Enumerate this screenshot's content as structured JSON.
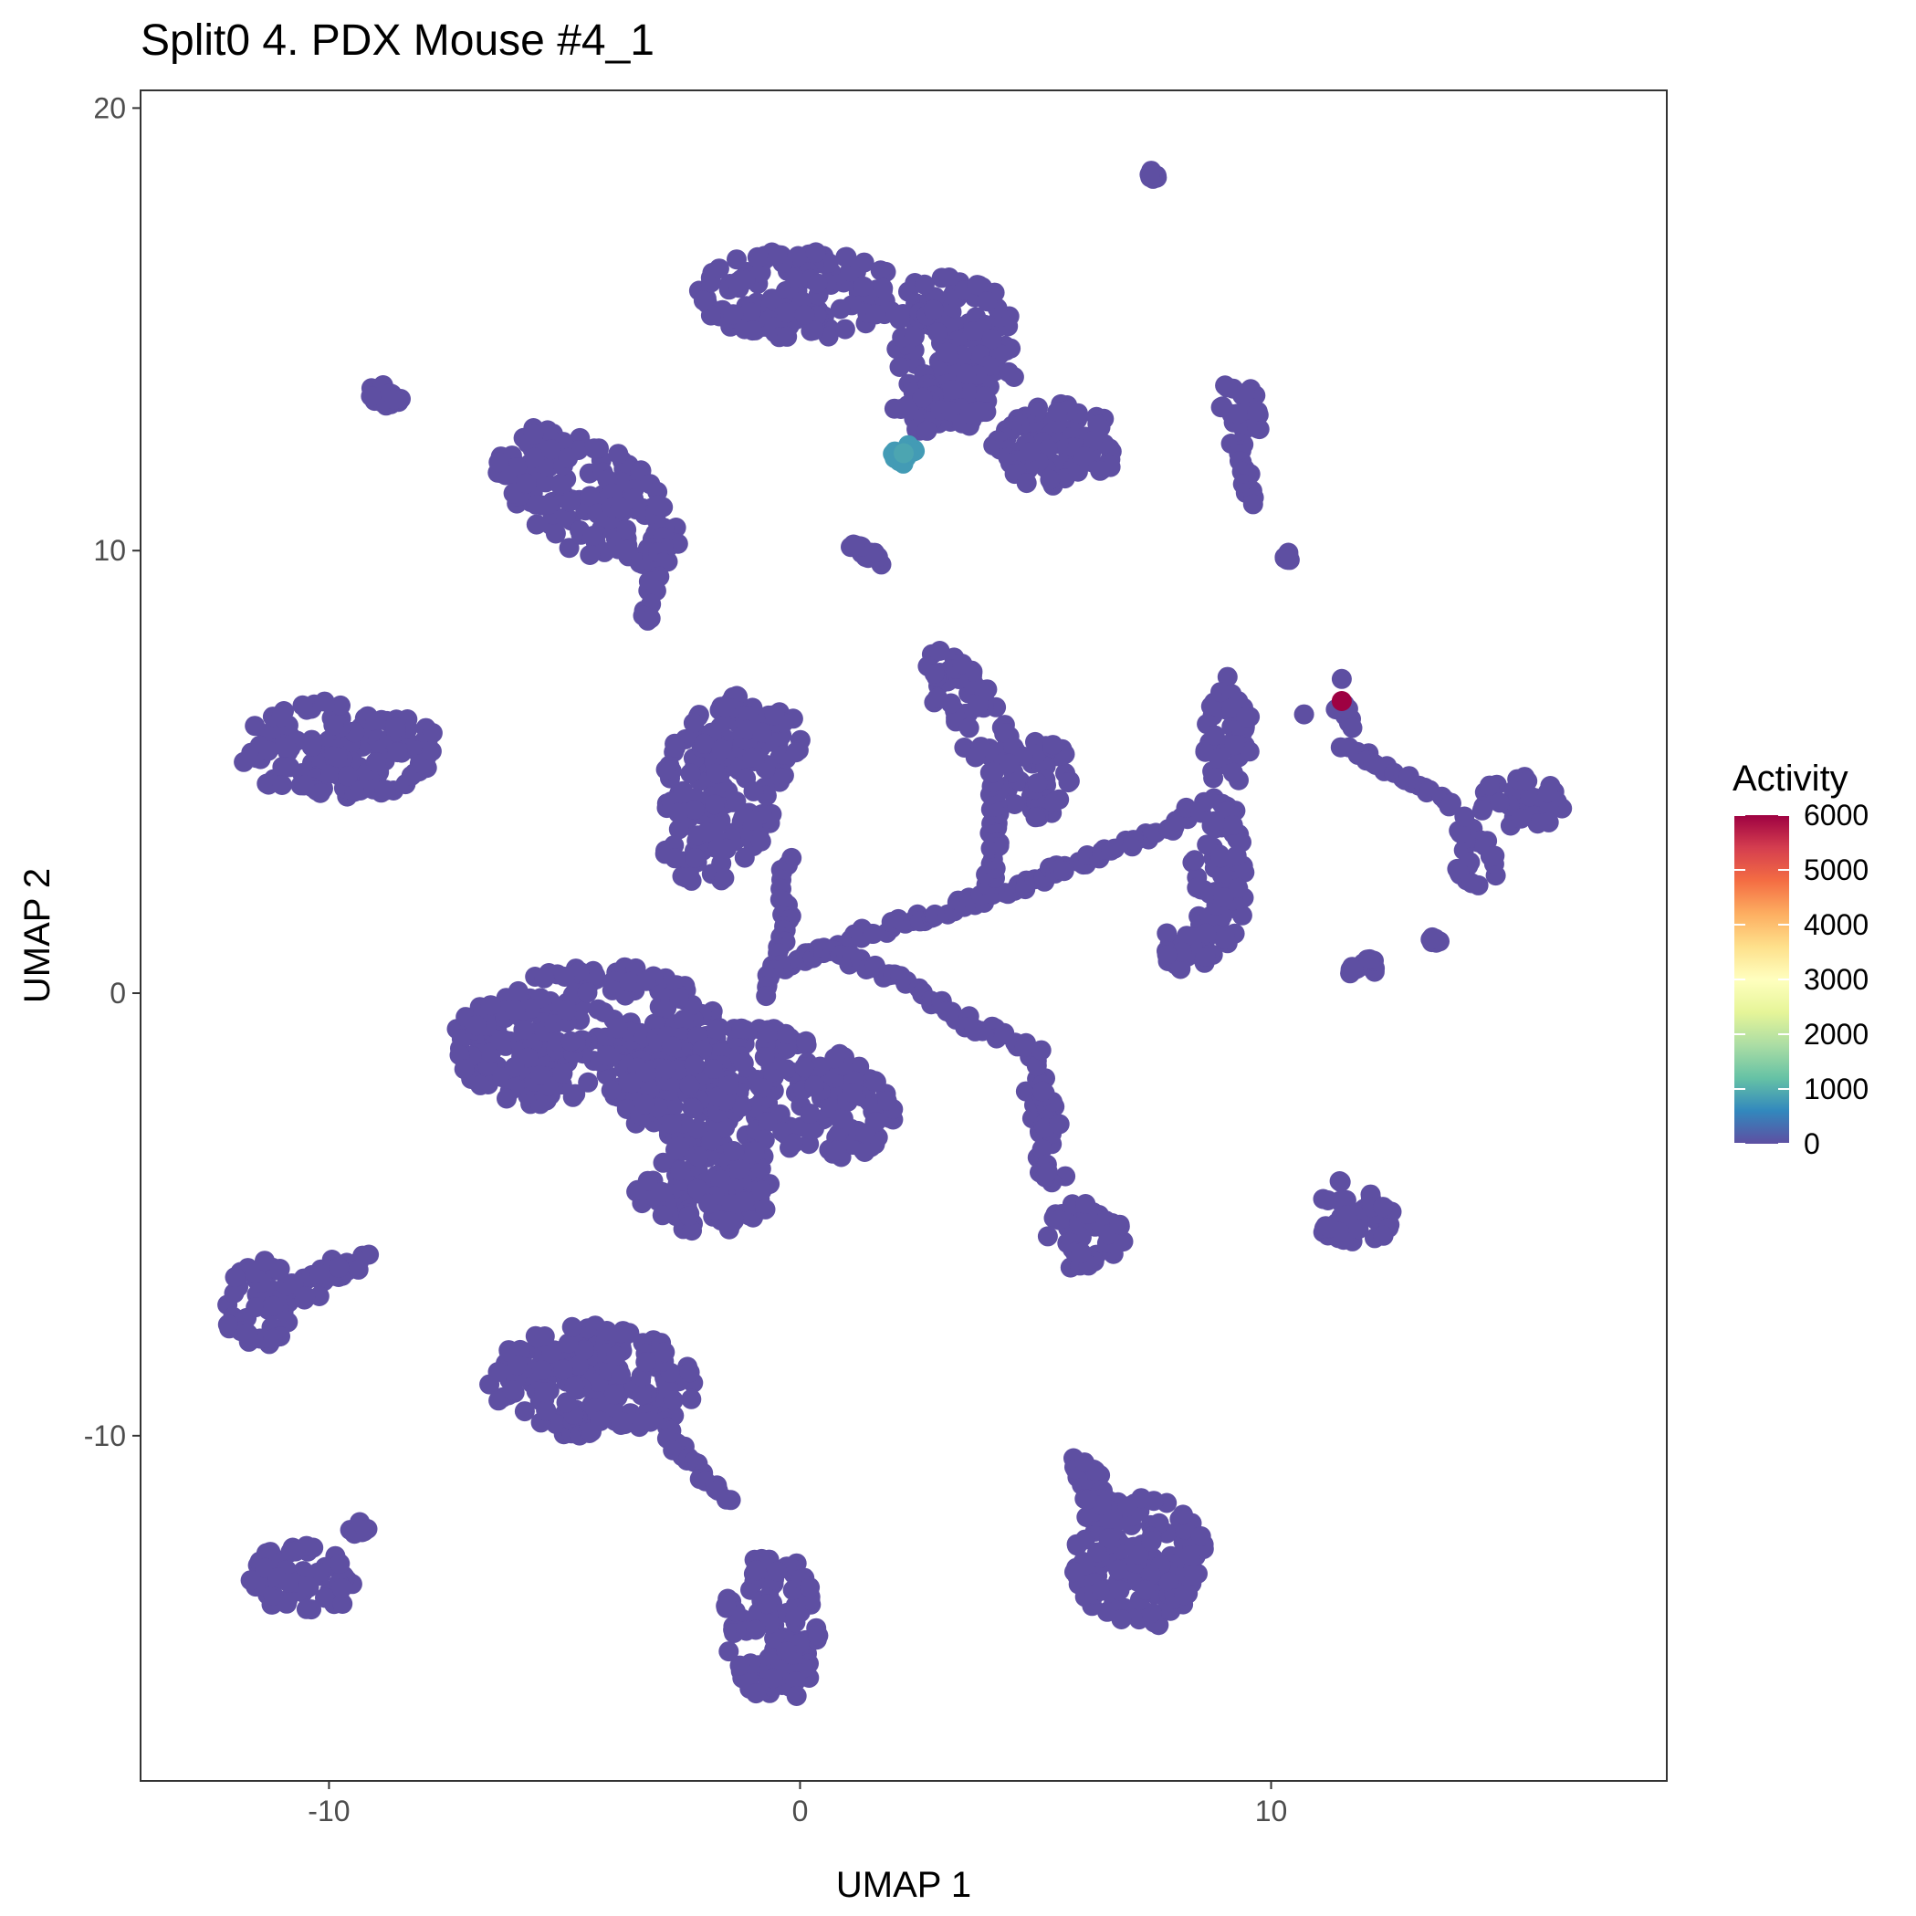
{
  "chart_data": {
    "type": "scatter",
    "title": "Split0 4. PDX Mouse #4_1",
    "xlabel": "UMAP 1",
    "ylabel": "UMAP 2",
    "xlim": [
      -14,
      18.4
    ],
    "ylim": [
      -17.8,
      20.4
    ],
    "xticks": [
      -10,
      0,
      10
    ],
    "xtick_labels": [
      "-10",
      "0",
      "10"
    ],
    "yticks": [
      -10,
      0,
      10,
      20
    ],
    "ytick_labels": [
      "-10",
      "0",
      "10",
      "20"
    ],
    "grid": false,
    "point_color": "#5E4FA2",
    "legend": {
      "title": "Activity",
      "placement": "right",
      "range": [
        0,
        6000
      ],
      "ticks": [
        0,
        1000,
        2000,
        3000,
        4000,
        5000,
        6000
      ],
      "tick_labels": [
        "0",
        "1000",
        "2000",
        "3000",
        "4000",
        "5000",
        "6000"
      ],
      "colors": [
        "#5E4FA2",
        "#3288BD",
        "#66C2A5",
        "#ABDDA4",
        "#E6F598",
        "#FFFFBF",
        "#FEE08B",
        "#FDAE61",
        "#F46D43",
        "#D53E4F",
        "#9E0142"
      ]
    },
    "clusters": [
      {
        "cx": 0.0,
        "cy": 15.8,
        "rx": 2.2,
        "ry": 1.0,
        "rot": 0,
        "activity": 0
      },
      {
        "cx": 3.3,
        "cy": 14.6,
        "rx": 1.3,
        "ry": 1.8,
        "rot": 10,
        "activity": 0
      },
      {
        "cx": 2.9,
        "cy": 13.2,
        "rx": 0.9,
        "ry": 0.6,
        "rot": 0,
        "activity": 0
      },
      {
        "cx": 5.7,
        "cy": 12.4,
        "rx": 1.1,
        "ry": 1.0,
        "rot": 0,
        "activity": 0
      },
      {
        "cx": 2.2,
        "cy": 12.2,
        "rx": 0.25,
        "ry": 0.25,
        "rot": 0,
        "activity": 800
      },
      {
        "cx": 9.4,
        "cy": 13.1,
        "rx": 0.5,
        "ry": 0.8,
        "rot": 20,
        "activity": 0
      },
      {
        "cx": -4.5,
        "cy": 11.2,
        "rx": 2.3,
        "ry": 1.2,
        "rot": -35,
        "activity": 0
      },
      {
        "cx": -9.8,
        "cy": 5.5,
        "rx": 2.2,
        "ry": 1.1,
        "rot": 0,
        "activity": 0
      },
      {
        "cx": -1.7,
        "cy": 4.6,
        "rx": 1.3,
        "ry": 2.2,
        "rot": -15,
        "activity": 0
      },
      {
        "cx": -0.6,
        "cy": 5.8,
        "rx": 0.7,
        "ry": 0.7,
        "rot": 0,
        "activity": 0
      },
      {
        "cx": 3.6,
        "cy": 6.4,
        "rx": 0.6,
        "ry": 1.6,
        "rot": 30,
        "activity": 0
      },
      {
        "cx": 5.0,
        "cy": 4.9,
        "rx": 0.8,
        "ry": 1.0,
        "rot": 0,
        "activity": 0
      },
      {
        "cx": 9.1,
        "cy": 5.6,
        "rx": 0.5,
        "ry": 1.6,
        "rot": 0,
        "activity": 0
      },
      {
        "cx": 8.9,
        "cy": 2.6,
        "rx": 0.6,
        "ry": 1.6,
        "rot": 0,
        "activity": 0
      },
      {
        "cx": 8.2,
        "cy": 1.0,
        "rx": 0.6,
        "ry": 0.5,
        "rot": 0,
        "activity": 0
      },
      {
        "cx": 15.3,
        "cy": 4.3,
        "rx": 0.9,
        "ry": 0.6,
        "rot": 0,
        "activity": 0
      },
      {
        "cx": 14.4,
        "cy": 3.0,
        "rx": 0.5,
        "ry": 0.8,
        "rot": 30,
        "activity": 0
      },
      {
        "cx": -4.5,
        "cy": -1.0,
        "rx": 2.9,
        "ry": 1.6,
        "rot": 5,
        "activity": 0
      },
      {
        "cx": -0.4,
        "cy": -2.2,
        "rx": 2.6,
        "ry": 1.3,
        "rot": -20,
        "activity": 0
      },
      {
        "cx": -2.0,
        "cy": -4.3,
        "rx": 1.5,
        "ry": 1.1,
        "rot": 0,
        "activity": 0
      },
      {
        "cx": -2.5,
        "cy": -2.5,
        "rx": 1.2,
        "ry": 1.0,
        "rot": 0,
        "activity": 0
      },
      {
        "cx": 6.0,
        "cy": -5.5,
        "rx": 0.9,
        "ry": 0.8,
        "rot": 0,
        "activity": 0
      },
      {
        "cx": 5.2,
        "cy": -3.1,
        "rx": 0.35,
        "ry": 1.7,
        "rot": 10,
        "activity": 0
      },
      {
        "cx": 11.8,
        "cy": -4.9,
        "rx": 0.9,
        "ry": 0.8,
        "rot": 0,
        "activity": 0
      },
      {
        "cx": -11.5,
        "cy": -7.0,
        "rx": 0.8,
        "ry": 1.0,
        "rot": 0,
        "activity": 0
      },
      {
        "cx": -10.2,
        "cy": -6.5,
        "rx": 1.6,
        "ry": 0.3,
        "rot": 30,
        "activity": 0
      },
      {
        "cx": -4.4,
        "cy": -8.8,
        "rx": 2.2,
        "ry": 1.3,
        "rot": 0,
        "activity": 0
      },
      {
        "cx": -10.5,
        "cy": -13.2,
        "rx": 1.2,
        "ry": 0.8,
        "rot": 0,
        "activity": 0
      },
      {
        "cx": -0.6,
        "cy": -14.3,
        "rx": 1.0,
        "ry": 1.8,
        "rot": 5,
        "activity": 0
      },
      {
        "cx": 7.2,
        "cy": -12.8,
        "rx": 1.4,
        "ry": 1.6,
        "rot": 0,
        "activity": 0
      },
      {
        "cx": 6.1,
        "cy": -11.0,
        "rx": 0.35,
        "ry": 0.7,
        "rot": 30,
        "activity": 0
      }
    ],
    "trails": [
      [
        [
          -0.6,
          0.4
        ],
        [
          1.2,
          1.3
        ],
        [
          3.5,
          2.0
        ],
        [
          5.5,
          2.8
        ],
        [
          7.5,
          3.6
        ],
        [
          8.5,
          4.2
        ]
      ],
      [
        [
          0.5,
          1.0
        ],
        [
          2.0,
          0.4
        ],
        [
          3.8,
          -0.8
        ],
        [
          5.0,
          -1.2
        ]
      ],
      [
        [
          -0.3,
          3.0
        ],
        [
          -0.3,
          1.2
        ],
        [
          -0.8,
          0.0
        ]
      ],
      [
        [
          4.0,
          2.5
        ],
        [
          4.2,
          4.0
        ],
        [
          4.0,
          5.0
        ]
      ],
      [
        [
          11.6,
          5.6
        ],
        [
          13.0,
          4.8
        ],
        [
          14.0,
          4.1
        ]
      ],
      [
        [
          11.4,
          6.5
        ],
        [
          11.8,
          6.0
        ]
      ],
      [
        [
          -2.9,
          10.2
        ],
        [
          -3.3,
          8.3
        ]
      ],
      [
        [
          5.0,
          13.2
        ],
        [
          4.2,
          12.5
        ],
        [
          4.7,
          11.6
        ]
      ],
      [
        [
          9.2,
          12.5
        ],
        [
          9.6,
          11.1
        ]
      ],
      [
        [
          -3.0,
          -9.8
        ],
        [
          -1.5,
          -11.5
        ]
      ]
    ],
    "small_groups": [
      {
        "cx": -8.8,
        "cy": 13.5,
        "rx": 0.35,
        "ry": 0.25,
        "rot": -30,
        "activity": 0
      },
      {
        "cx": 7.5,
        "cy": 18.5,
        "rx": 0.12,
        "ry": 0.1,
        "rot": 0,
        "activity": 0
      },
      {
        "cx": 1.4,
        "cy": 9.9,
        "rx": 0.4,
        "ry": 0.2,
        "rot": -35,
        "activity": 0
      },
      {
        "cx": 10.4,
        "cy": 9.9,
        "rx": 0.15,
        "ry": 0.12,
        "rot": 0,
        "activity": 0
      },
      {
        "cx": 11.9,
        "cy": 0.6,
        "rx": 0.4,
        "ry": 0.2,
        "rot": 0,
        "activity": 0
      },
      {
        "cx": 13.5,
        "cy": 1.2,
        "rx": 0.12,
        "ry": 0.12,
        "rot": 0,
        "activity": 0
      },
      {
        "cx": -9.4,
        "cy": -12.1,
        "rx": 0.3,
        "ry": 0.15,
        "rot": 30,
        "activity": 0
      }
    ],
    "highlight_points": [
      {
        "x": 11.5,
        "y": 6.6,
        "activity": 6000
      },
      {
        "x": 11.5,
        "y": 7.1,
        "activity": 0
      },
      {
        "x": 10.7,
        "y": 6.3,
        "activity": 0
      },
      {
        "x": 2.2,
        "y": 12.2,
        "activity": 900
      }
    ]
  }
}
